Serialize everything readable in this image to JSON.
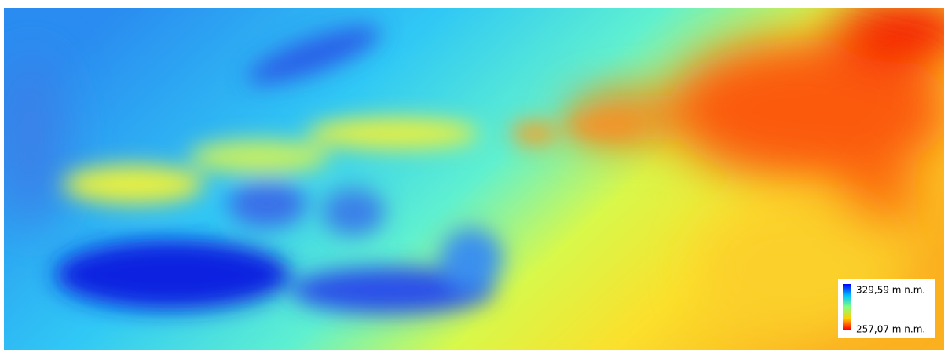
{
  "legend": {
    "max_label": "329,59 m n.m.",
    "min_label": "257,07 m n.m."
  }
}
